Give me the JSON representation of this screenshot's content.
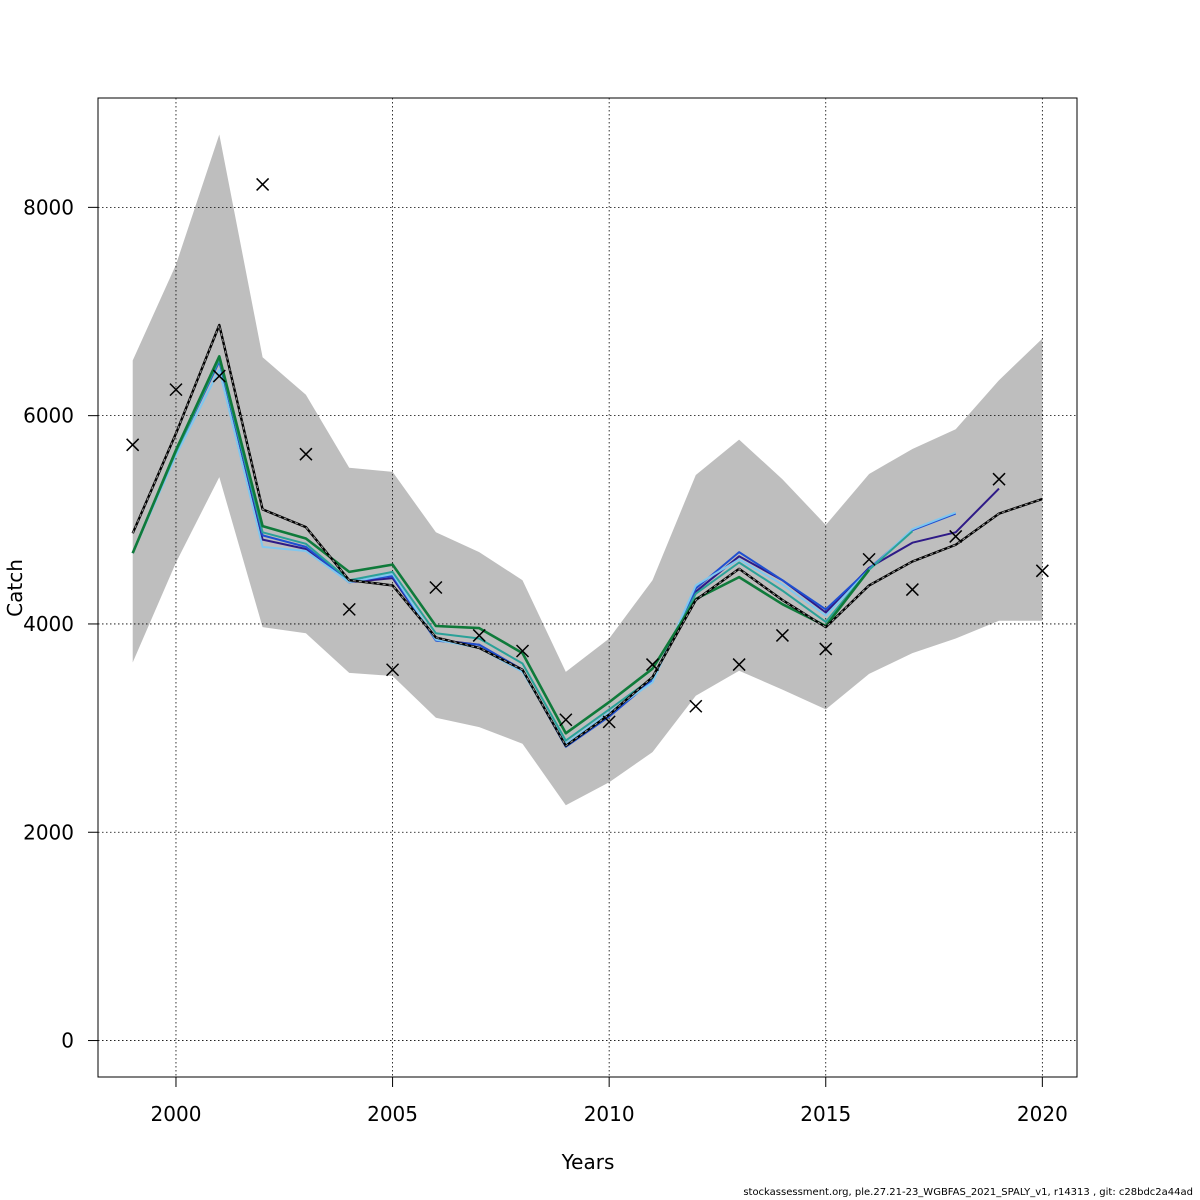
{
  "chart_data": {
    "type": "line",
    "title": "",
    "xlabel": "Years",
    "ylabel": "Catch",
    "xlim": [
      1998.2,
      2020.8
    ],
    "ylim": [
      -350,
      9050
    ],
    "x_ticks": [
      2000,
      2005,
      2010,
      2015,
      2020
    ],
    "y_ticks": [
      0,
      2000,
      4000,
      6000,
      8000
    ],
    "grid": true,
    "legend": "none",
    "colors": {
      "band": "#bebebe",
      "reference": "#000000",
      "observed": "#000000",
      "peel_dark_blue": "#2e1a87",
      "peel_blue": "#1f4fd1",
      "peel_light_blue": "#7fc7ef",
      "peel_teal": "#2aa198",
      "peel_green": "#0f7a3a"
    },
    "band": {
      "x": [
        1999,
        2000,
        2001,
        2002,
        2003,
        2004,
        2005,
        2006,
        2007,
        2008,
        2009,
        2010,
        2011,
        2012,
        2013,
        2014,
        2015,
        2016,
        2017,
        2018,
        2019,
        2020
      ],
      "upper": [
        6530,
        7450,
        8700,
        6560,
        6200,
        5500,
        5460,
        4880,
        4690,
        4420,
        3540,
        3860,
        4420,
        5430,
        5770,
        5390,
        4950,
        5440,
        5680,
        5870,
        6340,
        6740
      ],
      "lower": [
        3630,
        4590,
        5410,
        3970,
        3910,
        3530,
        3500,
        3100,
        3010,
        2850,
        2260,
        2480,
        2770,
        3310,
        3550,
        3370,
        3180,
        3520,
        3720,
        3860,
        4030,
        4030
      ]
    },
    "reference": {
      "x": [
        1999,
        2000,
        2001,
        2002,
        2003,
        2004,
        2005,
        2006,
        2007,
        2008,
        2009,
        2010,
        2011,
        2012,
        2013,
        2014,
        2015,
        2016,
        2017,
        2018,
        2019,
        2020
      ],
      "y": [
        4870,
        5830,
        6870,
        5100,
        4930,
        4420,
        4370,
        3870,
        3770,
        3560,
        2830,
        3130,
        3490,
        4230,
        4530,
        4230,
        3970,
        4370,
        4600,
        4760,
        5060,
        5200
      ]
    },
    "observed": {
      "x": [
        1999,
        2000,
        2001,
        2002,
        2003,
        2004,
        2005,
        2006,
        2007,
        2008,
        2009,
        2010,
        2011,
        2012,
        2013,
        2014,
        2015,
        2016,
        2017,
        2018,
        2019,
        2020
      ],
      "y": [
        5720,
        6250,
        6380,
        8220,
        5630,
        4140,
        3560,
        4350,
        3890,
        3740,
        3080,
        3060,
        3610,
        3210,
        3610,
        3890,
        3760,
        4620,
        4330,
        4840,
        5390,
        4510
      ]
    },
    "series": [
      {
        "color_key": "peel_dark_blue",
        "x": [
          1999,
          2000,
          2001,
          2002,
          2003,
          2004,
          2005,
          2006,
          2007,
          2008,
          2009,
          2010,
          2011,
          2012,
          2013,
          2014,
          2015,
          2016,
          2017,
          2018,
          2019
        ],
        "y": [
          4680,
          5660,
          6530,
          4810,
          4720,
          4400,
          4440,
          3850,
          3800,
          3560,
          2830,
          3120,
          3470,
          4310,
          4650,
          4420,
          4110,
          4540,
          4780,
          4880,
          5300
        ]
      },
      {
        "color_key": "peel_blue",
        "x": [
          1999,
          2000,
          2001,
          2002,
          2003,
          2004,
          2005,
          2006,
          2007,
          2008,
          2009,
          2010,
          2011,
          2012,
          2013,
          2014,
          2015,
          2016,
          2017,
          2018
        ],
        "y": [
          4680,
          5650,
          6520,
          4850,
          4740,
          4410,
          4460,
          3840,
          3800,
          3560,
          2820,
          3110,
          3460,
          4340,
          4690,
          4420,
          4140,
          4530,
          4900,
          5060
        ]
      },
      {
        "color_key": "peel_light_blue",
        "x": [
          1999,
          2000,
          2001,
          2002,
          2003,
          2004,
          2005,
          2006,
          2007,
          2008,
          2009,
          2010,
          2011,
          2012,
          2013,
          2014,
          2015,
          2016,
          2017,
          2018
        ],
        "y": [
          4680,
          5620,
          6440,
          4740,
          4700,
          4400,
          4480,
          3850,
          3770,
          3540,
          2850,
          3150,
          3440,
          4370,
          4620,
          4380,
          4080,
          4520,
          4910,
          5070
        ]
      },
      {
        "color_key": "peel_teal",
        "x": [
          1999,
          2000,
          2001,
          2002,
          2003,
          2004,
          2005,
          2006,
          2007,
          2008,
          2009,
          2010,
          2011,
          2012,
          2013,
          2014,
          2015,
          2016,
          2017
        ],
        "y": [
          4680,
          5650,
          6540,
          4880,
          4770,
          4420,
          4500,
          3910,
          3860,
          3620,
          2880,
          3180,
          3480,
          4290,
          4590,
          4320,
          4020,
          4520,
          4890
        ]
      },
      {
        "color_key": "peel_green",
        "x": [
          1999,
          2000,
          2001,
          2002,
          2003,
          2004,
          2005,
          2006,
          2007,
          2008,
          2009,
          2010,
          2011,
          2012,
          2013,
          2014,
          2015,
          2016
        ],
        "y": [
          4680,
          5670,
          6570,
          4940,
          4820,
          4500,
          4570,
          3980,
          3960,
          3720,
          2950,
          3250,
          3570,
          4240,
          4450,
          4190,
          3980,
          4520
        ]
      }
    ]
  },
  "footer": "stockassessment.org, ple.27.21-23_WGBFAS_2021_SPALY_v1, r14313 , git: c28bdc2a44ad"
}
